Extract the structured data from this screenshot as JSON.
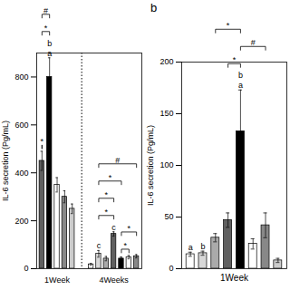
{
  "chart_data": [
    {
      "type": "bar",
      "ylabel": "IL-6 secretion (Pg/mL)",
      "categories": [
        null,
        null,
        "1Week",
        null,
        null,
        null,
        null,
        null,
        "4Weeks",
        null,
        null,
        null
      ],
      "values": [
        450,
        800,
        350,
        300,
        250,
        18,
        62,
        42,
        145,
        42,
        48,
        52
      ],
      "errors": [
        40,
        80,
        30,
        25,
        20,
        4,
        14,
        9,
        9,
        7,
        7,
        7
      ],
      "colors": [
        "#606060",
        "#000000",
        "#ffffff",
        "#888888",
        "#cccccc",
        "#ffffff",
        "#d8d8d8",
        "#aaaaaa",
        "#606060",
        "#000000",
        "#ffffff",
        "#888888"
      ],
      "ylim": [
        0,
        900
      ],
      "yticks": [
        0,
        200,
        400,
        600,
        800
      ],
      "grid": false,
      "annotations": [
        {
          "type": "vline",
          "after": 4,
          "line_style": "dotted"
        },
        {
          "text": "a",
          "x": 1
        },
        {
          "text": "b",
          "x": 1
        },
        {
          "text": "#",
          "from": 0,
          "to": 1
        },
        {
          "text": "*",
          "from": 0,
          "to": 1
        },
        {
          "text": "*",
          "from": 0,
          "to": 0
        },
        {
          "text": "c",
          "x": 6
        },
        {
          "text": "c",
          "x": 8
        },
        {
          "text": "#",
          "from": 6,
          "to": 11
        },
        {
          "text": "*",
          "from": 6,
          "to": 8
        },
        {
          "text": "*",
          "from": 6,
          "to": 8
        },
        {
          "text": "*",
          "from": 6,
          "to": 9
        },
        {
          "text": "*",
          "from": 9,
          "to": 10
        },
        {
          "text": "*",
          "from": 9,
          "to": 11
        }
      ]
    },
    {
      "type": "bar",
      "title": "b",
      "xlabel": "1Week",
      "ylabel": "IL-6 secretion (Pg/mL)",
      "categories": [
        null,
        null,
        null,
        null,
        null,
        null,
        null,
        null
      ],
      "values": [
        14,
        15,
        30,
        47,
        133,
        24,
        42,
        8
      ],
      "errors": [
        2,
        2,
        4,
        7,
        40,
        5,
        12,
        2
      ],
      "colors": [
        "#ffffff",
        "#d8d8d8",
        "#aaaaaa",
        "#606060",
        "#000000",
        "#ffffff",
        "#888888",
        "#cccccc"
      ],
      "ylim": [
        0,
        200
      ],
      "yticks": [
        0,
        50,
        100,
        150,
        200
      ],
      "grid": false,
      "tick_labels": "y",
      "annotations": [
        {
          "text": "a",
          "x": 0
        },
        {
          "text": "b",
          "x": 1
        },
        {
          "text": "a",
          "x": 4
        },
        {
          "text": "b",
          "x": 4
        },
        {
          "text": "*",
          "from": 2,
          "to": 4
        },
        {
          "text": "*",
          "from": 3,
          "to": 4
        },
        {
          "text": "#",
          "from": 4,
          "to": 6
        }
      ]
    }
  ]
}
